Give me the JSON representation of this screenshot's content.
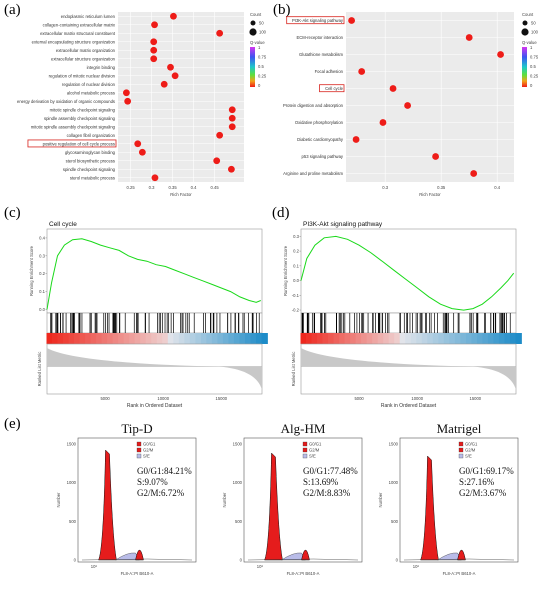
{
  "panels": {
    "a": "(a)",
    "b": "(b)",
    "c": "(c)",
    "d": "(d)",
    "e": "(e)"
  },
  "chart_data": [
    {
      "type": "scatter",
      "panel": "(a)",
      "xlabel": "Rich Factor",
      "xticks": [
        "0.25",
        "0.3",
        "0.35",
        "0.4",
        "0.45"
      ],
      "xlim": [
        0.22,
        0.52
      ],
      "highlighted": "positive regulation of cell cycle process",
      "legend_count_title": "Count",
      "legend_count_labels": [
        "50",
        "100"
      ],
      "legend_q_title": "Q-value",
      "legend_q_labels": [
        "1",
        "0.75",
        "0.5",
        "0.25",
        "0"
      ],
      "terms": [
        {
          "name": "endoplasmic reticulum lumen",
          "rich": 0.352
        },
        {
          "name": "collagen-containing extracellular matrix",
          "rich": 0.307
        },
        {
          "name": "extracellular matrix structural constituent",
          "rich": 0.462
        },
        {
          "name": "external encapsulating structure organization",
          "rich": 0.305
        },
        {
          "name": "extracellular matrix organization",
          "rich": 0.305
        },
        {
          "name": "extracellular structure organization",
          "rich": 0.305
        },
        {
          "name": "integrin binding",
          "rich": 0.345
        },
        {
          "name": "regulation of mitotic nuclear division",
          "rich": 0.356
        },
        {
          "name": "regulation of nuclear division",
          "rich": 0.33
        },
        {
          "name": "alcohol metabolic process",
          "rich": 0.24
        },
        {
          "name": "energy derivation by oxidation of organic compounds",
          "rich": 0.243
        },
        {
          "name": "mitotic spindle checkpoint signaling",
          "rich": 0.492
        },
        {
          "name": "spindle assembly checkpoint signaling",
          "rich": 0.492
        },
        {
          "name": "mitotic spindle assembly checkpoint signaling",
          "rich": 0.492
        },
        {
          "name": "collagen fibril organization",
          "rich": 0.462
        },
        {
          "name": "positive regulation of cell cycle process",
          "rich": 0.267
        },
        {
          "name": "glycosaminoglycan binding",
          "rich": 0.278
        },
        {
          "name": "sterol biosynthetic process",
          "rich": 0.455
        },
        {
          "name": "spindle checkpoint signaling",
          "rich": 0.49
        },
        {
          "name": "sterol metabolic process",
          "rich": 0.308
        }
      ]
    },
    {
      "type": "scatter",
      "panel": "(b)",
      "xlabel": "Rich Factor",
      "xticks": [
        "0.3",
        "0.35",
        "0.4"
      ],
      "xlim": [
        0.265,
        0.415
      ],
      "highlighted": [
        "PI3K-Akt signaling pathway",
        "Cell cycle"
      ],
      "legend_count_title": "Count",
      "legend_count_labels": [
        "50",
        "100"
      ],
      "legend_q_title": "Q-value",
      "legend_q_labels": [
        "1",
        "0.75",
        "0.5",
        "0.25",
        "0"
      ],
      "terms": [
        {
          "name": "PI3K-Akt signaling pathway",
          "rich": 0.27
        },
        {
          "name": "ECM-receptor interaction",
          "rich": 0.375
        },
        {
          "name": "Glutathione metabolism",
          "rich": 0.403
        },
        {
          "name": "Focal adhesion",
          "rich": 0.279
        },
        {
          "name": "Cell cycle",
          "rich": 0.307
        },
        {
          "name": "Protein digestion and absorption",
          "rich": 0.32
        },
        {
          "name": "Oxidative phosphorylation",
          "rich": 0.298
        },
        {
          "name": "Diabetic cardiomyopathy",
          "rich": 0.274
        },
        {
          "name": "p53 signaling pathway",
          "rich": 0.345
        },
        {
          "name": "Arginine and proline metabolism",
          "rich": 0.379
        }
      ]
    },
    {
      "type": "line",
      "panel": "(c)",
      "title": "Cell cycle",
      "ylabel": "Running Enrichment Score",
      "yticks": [
        "0.4",
        "0.3",
        "0.2",
        "0.1",
        "0.0"
      ],
      "ylabel2": "Ranked List Metric",
      "xlabel": "Rank in Ordered Dataset",
      "xticks": [
        "5000",
        "10000",
        "15000"
      ],
      "xlim": [
        0,
        18500
      ],
      "ylim": [
        -0.02,
        0.45
      ],
      "x": [
        0,
        400,
        900,
        1500,
        2200,
        3000,
        3800,
        4600,
        5400,
        6200,
        7000,
        7800,
        8600,
        9400,
        10200,
        11000,
        11800,
        12600,
        13400,
        14200,
        15000,
        15800,
        16600,
        17400,
        18000,
        18400
      ],
      "y": [
        0.0,
        0.15,
        0.3,
        0.36,
        0.39,
        0.395,
        0.38,
        0.36,
        0.345,
        0.33,
        0.3,
        0.28,
        0.27,
        0.25,
        0.24,
        0.22,
        0.2,
        0.18,
        0.16,
        0.14,
        0.12,
        0.1,
        0.07,
        0.05,
        0.04,
        0.05
      ]
    },
    {
      "type": "line",
      "panel": "(d)",
      "title": "PI3K-Akt signaling pathway",
      "ylabel": "Running Enrichment Score",
      "yticks": [
        "0.3",
        "0.2",
        "0.1",
        "0.0",
        "-0.1",
        "-0.2"
      ],
      "ylabel2": "Ranked List Metric",
      "xlabel": "Rank in Ordered Dataset",
      "xticks": [
        "5000",
        "10000",
        "15000"
      ],
      "xlim": [
        0,
        18500
      ],
      "ylim": [
        -0.22,
        0.35
      ],
      "x": [
        0,
        500,
        1200,
        2000,
        3000,
        4000,
        5000,
        6000,
        7000,
        8000,
        9000,
        10000,
        11000,
        12000,
        13000,
        14000,
        14800,
        15600,
        16400,
        17200,
        17800,
        18300
      ],
      "y": [
        0.0,
        0.15,
        0.24,
        0.29,
        0.3,
        0.28,
        0.24,
        0.19,
        0.13,
        0.07,
        0.01,
        -0.05,
        -0.11,
        -0.16,
        -0.19,
        -0.2,
        -0.19,
        -0.16,
        -0.11,
        -0.05,
        0.0,
        0.05
      ]
    },
    {
      "type": "area",
      "panel": "(e)",
      "ylabel": "Number",
      "xlabel": "FL8-A::PI B610-A",
      "legend": [
        "G0/G1",
        "G2/M",
        "S/E"
      ],
      "samples": [
        {
          "name": "Tip-D",
          "g0g1": "G0/G1:84.21%",
          "s": "S:9.07%",
          "g2m": "G2/M:6.72%"
        },
        {
          "name": "Alg-HM",
          "g0g1": "G0/G1:77.48%",
          "s": "S:13.69%",
          "g2m": "G2/M:8.83%"
        },
        {
          "name": "Matrigel",
          "g0g1": "G0/G1:69.17%",
          "s": "S:27.16%",
          "g2m": "G2/M:3.67%"
        }
      ]
    }
  ]
}
